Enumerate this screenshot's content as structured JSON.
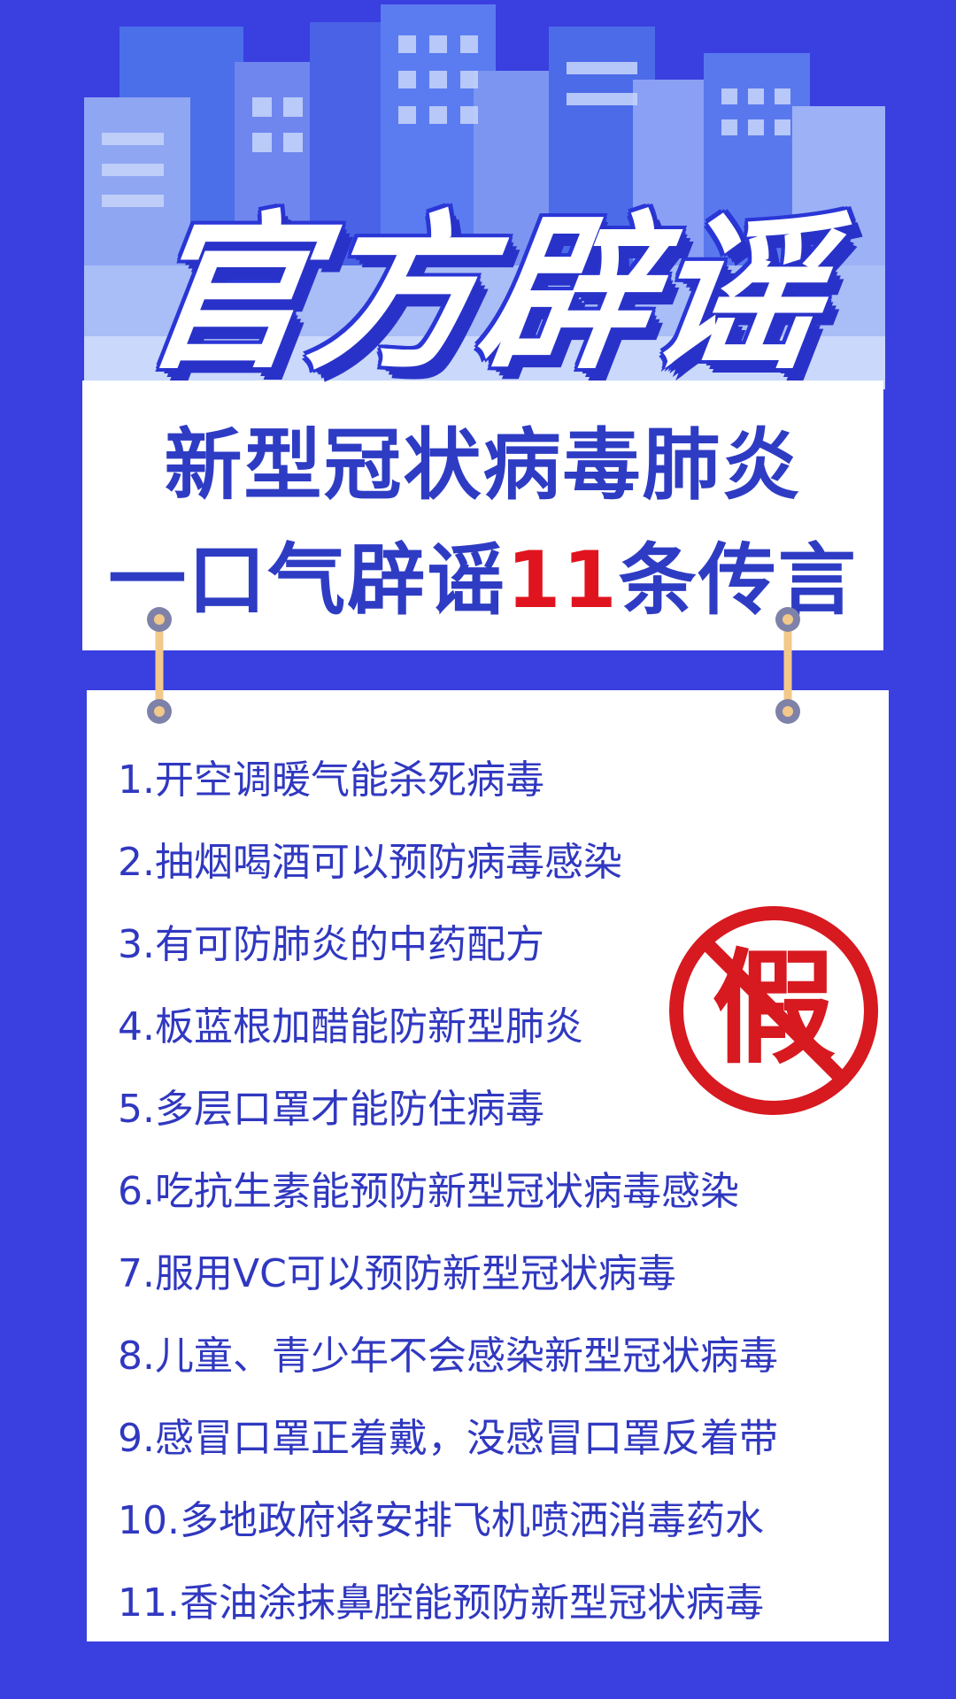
{
  "colors": {
    "background": "#3a3fe0",
    "accent_text": "#2e3cc4",
    "highlight": "#e0141e",
    "stamp": "#d71920"
  },
  "header": {
    "title": "官方辟谣",
    "subtitle_line1": "新型冠状病毒肺炎",
    "subtitle_line2_prefix": "一口气辟谣",
    "subtitle_line2_number": "11",
    "subtitle_line2_suffix": "条传言"
  },
  "stamp": {
    "icon": "prohibited-fake-stamp-icon",
    "text": "假"
  },
  "rumors": [
    "1.开空调暖气能杀死病毒",
    "2.抽烟喝酒可以预防病毒感染",
    "3.有可防肺炎的中药配方",
    "4.板蓝根加醋能防新型肺炎",
    "5.多层口罩才能防住病毒",
    "6.吃抗生素能预防新型冠状病毒感染",
    "7.服用VC可以预防新型冠状病毒",
    "8.儿童、青少年不会感染新型冠状病毒",
    "9.感冒口罩正着戴，没感冒口罩反着带",
    "10.多地政府将安排飞机喷洒消毒药水",
    "11.香油涂抹鼻腔能预防新型冠状病毒"
  ]
}
